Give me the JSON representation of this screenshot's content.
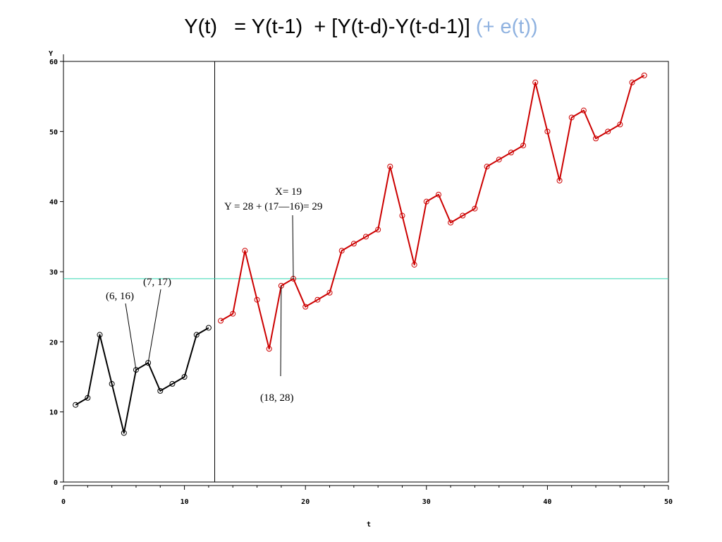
{
  "title": {
    "main": "Y(t)   = Y(t-1)  + [Y(t-d)-Y(t-d-1)] ",
    "error_term": "(+ e(t))"
  },
  "colors": {
    "observed": "#000000",
    "forecast": "#cc0000",
    "reference_line": "#33d6b0",
    "error_term": "#8fb2e0"
  },
  "chart_data": {
    "type": "line",
    "xlabel": "t",
    "ylabel": "Y",
    "xlim": [
      0,
      50
    ],
    "ylim": [
      0,
      60
    ],
    "x_ticks": [
      0,
      10,
      20,
      30,
      40,
      50
    ],
    "y_ticks": [
      0,
      10,
      20,
      30,
      40,
      50,
      60
    ],
    "grid": false,
    "series": [
      {
        "color": "#000000",
        "points": [
          [
            1,
            11
          ],
          [
            2,
            12
          ],
          [
            3,
            21
          ],
          [
            4,
            14
          ],
          [
            5,
            7
          ],
          [
            6,
            16
          ],
          [
            7,
            17
          ],
          [
            8,
            13
          ],
          [
            9,
            14
          ],
          [
            10,
            15
          ],
          [
            11,
            21
          ],
          [
            12,
            22
          ]
        ]
      },
      {
        "color": "#cc0000",
        "points": [
          [
            13,
            23
          ],
          [
            14,
            24
          ],
          [
            15,
            33
          ],
          [
            16,
            26
          ],
          [
            17,
            19
          ],
          [
            18,
            28
          ],
          [
            19,
            29
          ],
          [
            20,
            25
          ],
          [
            21,
            26
          ],
          [
            22,
            27
          ],
          [
            23,
            33
          ],
          [
            24,
            34
          ],
          [
            25,
            35
          ],
          [
            26,
            36
          ],
          [
            27,
            45
          ],
          [
            28,
            38
          ],
          [
            29,
            31
          ],
          [
            30,
            40
          ],
          [
            31,
            41
          ],
          [
            32,
            37
          ],
          [
            33,
            38
          ],
          [
            34,
            39
          ],
          [
            35,
            45
          ],
          [
            36,
            46
          ],
          [
            37,
            47
          ],
          [
            38,
            48
          ],
          [
            39,
            57
          ],
          [
            40,
            50
          ],
          [
            41,
            43
          ],
          [
            42,
            52
          ],
          [
            43,
            53
          ],
          [
            44,
            49
          ],
          [
            45,
            50
          ],
          [
            46,
            51
          ],
          [
            47,
            57
          ],
          [
            48,
            58
          ]
        ]
      }
    ],
    "vertical_line_x": 12.5,
    "horizontal_line_y": 29,
    "annotations": [
      {
        "text": "(6,  16)",
        "point": [
          6,
          16
        ]
      },
      {
        "text": "(7,  17)",
        "point": [
          7,
          17
        ]
      },
      {
        "text": "(18,  28)",
        "point": [
          18,
          28
        ]
      },
      {
        "text": "X= 19",
        "point": [
          19,
          29
        ]
      },
      {
        "text": "Y  =  28  +  (17—16)= 29",
        "point": [
          19,
          29
        ]
      }
    ]
  }
}
